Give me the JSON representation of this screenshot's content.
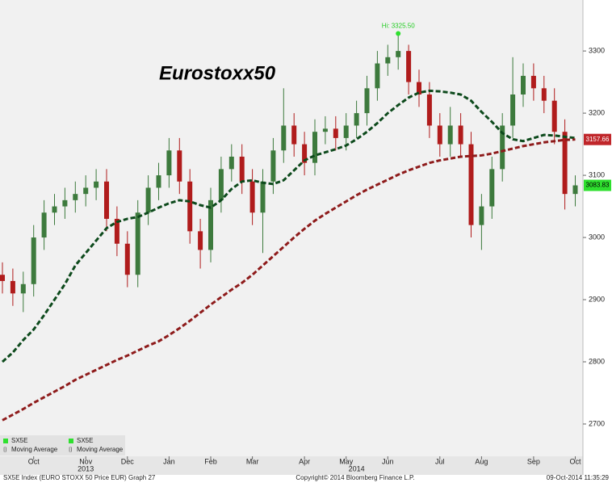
{
  "chart_data": {
    "type": "candlestick",
    "title": "Eurostoxx50",
    "categories": [
      null,
      null,
      null,
      "Oct",
      null,
      null,
      null,
      null,
      "Nov",
      null,
      null,
      null,
      "Dec",
      null,
      null,
      null,
      "Jan",
      null,
      null,
      null,
      "Feb",
      null,
      null,
      null,
      "Mar",
      null,
      null,
      null,
      null,
      "Apr",
      null,
      null,
      null,
      "May",
      null,
      null,
      null,
      "Jun",
      null,
      null,
      null,
      null,
      "Jul",
      null,
      null,
      null,
      "Aug",
      null,
      null,
      null,
      null,
      "Sep",
      null,
      null,
      null,
      "Oct"
    ],
    "years": [
      {
        "category": 8,
        "label": "2013"
      },
      {
        "category": 34,
        "label": "2014"
      }
    ],
    "open": [
      2940,
      2930,
      2910,
      2925,
      3000,
      3040,
      3050,
      3060,
      3070,
      3080,
      3090,
      3030,
      2990,
      2940,
      3040,
      3080,
      3100,
      3140,
      3090,
      3010,
      2980,
      3060,
      3110,
      3130,
      3090,
      3040,
      3090,
      3140,
      3180,
      3150,
      3120,
      3170,
      3175,
      3160,
      3180,
      3200,
      3240,
      3280,
      3290,
      3300,
      3250,
      3230,
      3180,
      3150,
      3180,
      3150,
      3020,
      3050,
      3110,
      3180,
      3230,
      3260,
      3240,
      3220,
      3170,
      3070
    ],
    "high": [
      2960,
      2950,
      2945,
      3020,
      3060,
      3070,
      3080,
      3090,
      3100,
      3110,
      3110,
      3050,
      3010,
      3060,
      3100,
      3120,
      3160,
      3160,
      3110,
      3030,
      3080,
      3130,
      3150,
      3150,
      3110,
      3110,
      3160,
      3240,
      3200,
      3170,
      3190,
      3195,
      3195,
      3200,
      3220,
      3260,
      3300,
      3310,
      3325.5,
      3310,
      3270,
      3250,
      3200,
      3210,
      3200,
      3170,
      3070,
      3130,
      3200,
      3290,
      3280,
      3280,
      3260,
      3240,
      3190,
      3100
    ],
    "low": [
      2910,
      2890,
      2880,
      2905,
      2980,
      3020,
      3030,
      3040,
      3050,
      3060,
      3010,
      2970,
      2920,
      2920,
      3020,
      3060,
      3080,
      3070,
      2990,
      2950,
      2960,
      3040,
      3090,
      3070,
      3020,
      2975,
      3070,
      3120,
      3130,
      3100,
      3100,
      3150,
      3140,
      3140,
      3160,
      3180,
      3220,
      3260,
      3270,
      3230,
      3210,
      3160,
      3130,
      3130,
      3130,
      3000,
      2980,
      3030,
      3090,
      3160,
      3210,
      3220,
      3200,
      3150,
      3045,
      3050
    ],
    "close": [
      2930,
      2910,
      2925,
      3000,
      3040,
      3050,
      3060,
      3070,
      3080,
      3090,
      3030,
      2990,
      2940,
      3040,
      3080,
      3100,
      3140,
      3090,
      3010,
      2980,
      3060,
      3110,
      3130,
      3090,
      3040,
      3090,
      3140,
      3180,
      3150,
      3120,
      3170,
      3175,
      3160,
      3180,
      3200,
      3240,
      3280,
      3290,
      3300,
      3250,
      3230,
      3180,
      3150,
      3180,
      3150,
      3020,
      3050,
      3110,
      3180,
      3230,
      3260,
      3240,
      3220,
      3170,
      3070,
      3083.83
    ],
    "up_color": "#3d7a3d",
    "down_color": "#b01c1c",
    "series": [
      {
        "name": "Moving Average",
        "color": "#0d4a1c",
        "values": [
          2800,
          2815,
          2835,
          2852,
          2875,
          2900,
          2925,
          2955,
          2975,
          2995,
          3015,
          3025,
          3030,
          3033,
          3040,
          3048,
          3055,
          3060,
          3058,
          3052,
          3048,
          3060,
          3078,
          3090,
          3092,
          3088,
          3086,
          3092,
          3108,
          3124,
          3132,
          3137,
          3142,
          3148,
          3158,
          3170,
          3184,
          3200,
          3213,
          3225,
          3233,
          3236,
          3235,
          3233,
          3230,
          3220,
          3202,
          3186,
          3168,
          3158,
          3155,
          3160,
          3165,
          3164,
          3162,
          3160
        ]
      },
      {
        "name": "Moving Average",
        "color": "#8e1b1b",
        "values": [
          2706,
          2715,
          2724,
          2734,
          2743,
          2752,
          2761,
          2771,
          2779,
          2787,
          2795,
          2803,
          2810,
          2818,
          2826,
          2833,
          2843,
          2854,
          2866,
          2879,
          2892,
          2904,
          2916,
          2927,
          2940,
          2955,
          2970,
          2985,
          3000,
          3014,
          3027,
          3038,
          3048,
          3058,
          3068,
          3077,
          3085,
          3093,
          3101,
          3108,
          3114,
          3120,
          3124,
          3127,
          3130,
          3131,
          3132,
          3135,
          3139,
          3143,
          3147,
          3150,
          3153,
          3155,
          3157,
          3157.66
        ]
      }
    ],
    "high_label": "Hi: 3325.50",
    "close_label": "3083.83",
    "ma_label": "3157.66",
    "price_legend": [
      "SX5E",
      "SX5E"
    ],
    "ylim": [
      2648,
      3382
    ],
    "yticks": [
      2700,
      2800,
      2900,
      3000,
      3100,
      3200,
      3300
    ]
  },
  "footer": {
    "left": "SX5E Index (EURO STOXX 50 Price EUR) Graph 27",
    "center": "Copyright© 2014 Bloomberg Finance L.P.",
    "right": "09-Oct-2014 11:35:29"
  }
}
